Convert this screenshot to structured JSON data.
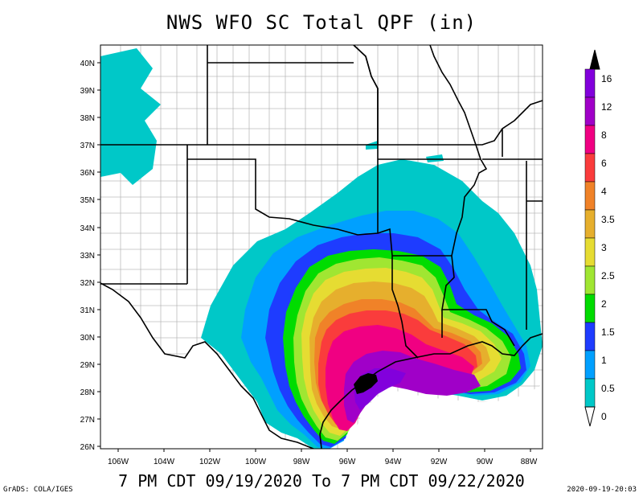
{
  "title": "NWS WFO SC Total QPF (in)",
  "subtitle": "7 PM CDT 09/19/2020 To 7 PM CDT 09/22/2020",
  "footer_left": "GrADS: COLA/IGES",
  "footer_right": "2020-09-19-20:03",
  "lat_labels": [
    "40N",
    "39N",
    "38N",
    "37N",
    "36N",
    "35N",
    "34N",
    "33N",
    "32N",
    "31N",
    "30N",
    "29N",
    "28N",
    "27N",
    "26N"
  ],
  "lon_labels": [
    "106W",
    "104W",
    "102W",
    "100W",
    "98W",
    "96W",
    "94W",
    "92W",
    "90W",
    "88W"
  ],
  "legend": [
    {
      "label": "0",
      "color": "#00c8c8"
    },
    {
      "label": "0.5",
      "color": "#00a0ff"
    },
    {
      "label": "1",
      "color": "#1e3cff"
    },
    {
      "label": "1.5",
      "color": "#00dc00"
    },
    {
      "label": "2",
      "color": "#a0e632"
    },
    {
      "label": "2.5",
      "color": "#e6dc32"
    },
    {
      "label": "3",
      "color": "#e6af2d"
    },
    {
      "label": "3.5",
      "color": "#f08228"
    },
    {
      "label": "4",
      "color": "#fa3c3c"
    },
    {
      "label": "6",
      "color": "#f00082"
    },
    {
      "label": "8",
      "color": "#a000c8"
    },
    {
      "label": "12",
      "color": "#8200dc"
    },
    {
      "label": "16",
      "color": "#000000"
    }
  ]
}
